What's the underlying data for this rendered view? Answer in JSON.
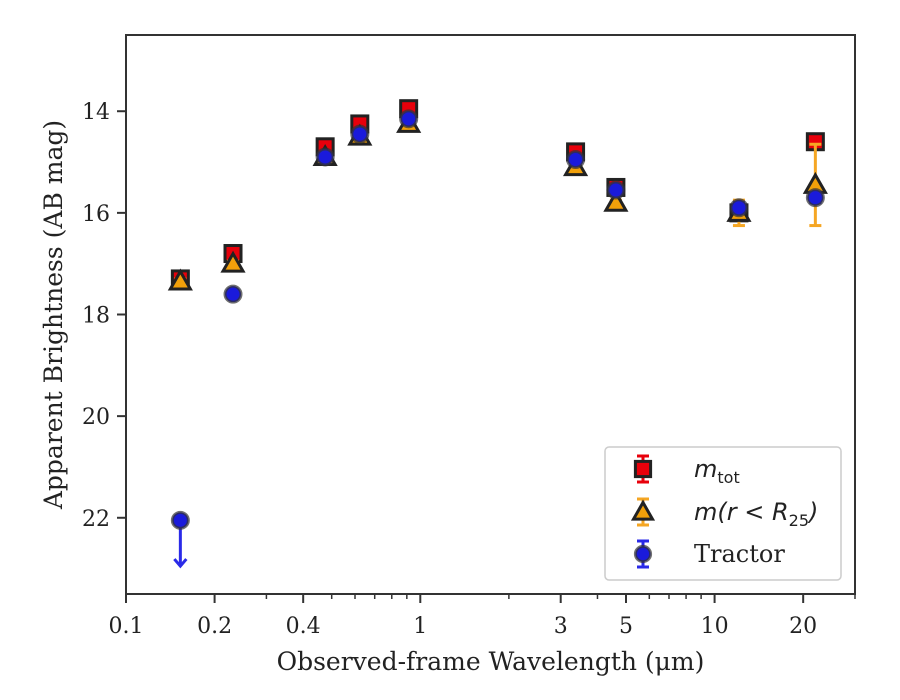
{
  "chart_data": {
    "type": "scatter",
    "xlabel": "Observed-frame Wavelength (μm)",
    "ylabel": "Apparent Brightness (AB mag)",
    "x_scale": "log",
    "xlim": [
      0.1,
      30
    ],
    "ylim": [
      23.5,
      12.5
    ],
    "y_inverted": true,
    "x_ticks": [
      {
        "value": 0.1,
        "label": "0.1"
      },
      {
        "value": 0.2,
        "label": "0.2"
      },
      {
        "value": 0.4,
        "label": "0.4"
      },
      {
        "value": 1,
        "label": "1"
      },
      {
        "value": 3,
        "label": "3"
      },
      {
        "value": 5,
        "label": "5"
      },
      {
        "value": 10,
        "label": "10"
      },
      {
        "value": 20,
        "label": "20"
      }
    ],
    "y_ticks": [
      {
        "value": 14,
        "label": "14"
      },
      {
        "value": 16,
        "label": "16"
      },
      {
        "value": 18,
        "label": "18"
      },
      {
        "value": 20,
        "label": "20"
      },
      {
        "value": 22,
        "label": "22"
      }
    ],
    "grid": false,
    "legend_position": "lower-right",
    "series": [
      {
        "name": "m_tot",
        "legend_main": "m",
        "legend_sub": "tot",
        "marker": "square",
        "color": "#e8000b",
        "errcolor": "#e8000b",
        "points": [
          {
            "x": 0.153,
            "y": 17.3,
            "err": 0.05
          },
          {
            "x": 0.231,
            "y": 16.8,
            "err": 0.05
          },
          {
            "x": 0.475,
            "y": 14.7,
            "err": 0.05
          },
          {
            "x": 0.623,
            "y": 14.25,
            "err": 0.05
          },
          {
            "x": 0.913,
            "y": 13.95,
            "err": 0.05
          },
          {
            "x": 3.37,
            "y": 14.8,
            "err": 0.05
          },
          {
            "x": 4.62,
            "y": 15.5,
            "err": 0.05
          },
          {
            "x": 12.1,
            "y": 16.0,
            "err": 0.05
          },
          {
            "x": 22.0,
            "y": 14.6,
            "err": 0.05
          }
        ]
      },
      {
        "name": "m(r < R_25)",
        "legend_main": "m(r < R",
        "legend_sub": "25",
        "legend_close": ")",
        "marker": "triangle",
        "color": "#f1a00a",
        "errcolor": "#f5a623",
        "points": [
          {
            "x": 0.153,
            "y": 17.35,
            "err": 0.05
          },
          {
            "x": 0.231,
            "y": 17.0,
            "err": 0.05
          },
          {
            "x": 0.475,
            "y": 14.9,
            "err": 0.05
          },
          {
            "x": 0.623,
            "y": 14.5,
            "err": 0.05
          },
          {
            "x": 0.913,
            "y": 14.25,
            "err": 0.05
          },
          {
            "x": 3.37,
            "y": 15.1,
            "err": 0.05
          },
          {
            "x": 4.62,
            "y": 15.8,
            "err": 0.05
          },
          {
            "x": 12.1,
            "y": 16.0,
            "err": 0.25
          },
          {
            "x": 22.0,
            "y": 15.45,
            "err": 0.8
          }
        ]
      },
      {
        "name": "Tractor",
        "legend_main": "Tractor",
        "marker": "circle",
        "color": "#1a1adb",
        "errcolor": "#2a2ae8",
        "points": [
          {
            "x": 0.153,
            "y": 22.05,
            "upper_limit": true
          },
          {
            "x": 0.231,
            "y": 17.6,
            "err": 0.05
          },
          {
            "x": 0.475,
            "y": 14.9,
            "err": 0.05
          },
          {
            "x": 0.623,
            "y": 14.45,
            "err": 0.05
          },
          {
            "x": 0.913,
            "y": 14.15,
            "err": 0.05
          },
          {
            "x": 3.37,
            "y": 14.95,
            "err": 0.05
          },
          {
            "x": 4.62,
            "y": 15.55,
            "err": 0.05
          },
          {
            "x": 12.1,
            "y": 15.9,
            "err": 0.1
          },
          {
            "x": 22.0,
            "y": 15.7,
            "err": 0.1
          }
        ]
      }
    ]
  }
}
